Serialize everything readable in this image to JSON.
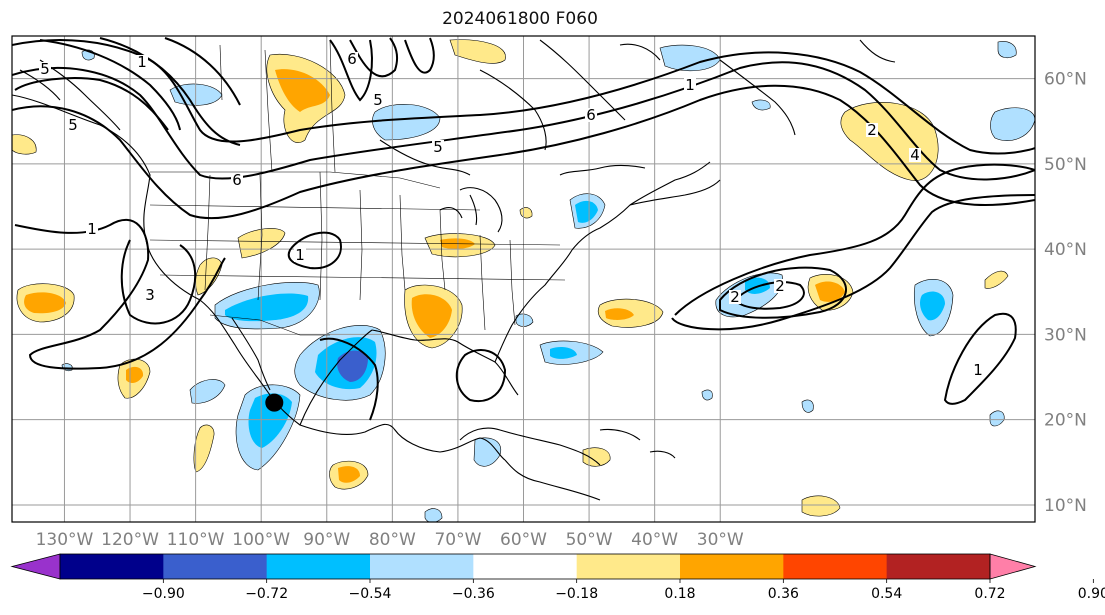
{
  "title": "2024061800 F060",
  "map": {
    "lon_range": [
      -138,
      18
    ],
    "lat_range": [
      8,
      65
    ],
    "grid_lons": [
      -130,
      -120,
      -110,
      -100,
      -90,
      -80,
      -70,
      -60,
      -50,
      -40,
      -30
    ],
    "grid_lats": [
      10,
      20,
      30,
      40,
      50,
      60
    ],
    "lon_labels": [
      "130°W",
      "120°W",
      "110°W",
      "100°W",
      "90°W",
      "80°W",
      "70°W",
      "60°W",
      "50°W",
      "40°W",
      "30°W"
    ],
    "lat_labels": [
      "10°N",
      "20°N",
      "30°N",
      "40°N",
      "50°N",
      "60°N"
    ],
    "marker": {
      "lon": -98,
      "lat": 22
    }
  },
  "colorbar": {
    "colors": [
      "#9932cc",
      "#00008b",
      "#3a5fcd",
      "#00bfff",
      "#b0e0ff",
      "#ffffff",
      "#ffe98a",
      "#ffa500",
      "#ff4500",
      "#b22222",
      "#ff7fa8"
    ],
    "tick_labels": [
      "−0.90",
      "−0.72",
      "−0.54",
      "−0.36",
      "−0.18",
      "0.18",
      "0.36",
      "0.54",
      "0.72",
      "0.90"
    ]
  },
  "contour_labels": [
    "5",
    "6",
    "5",
    "1",
    "6",
    "5",
    "6",
    "1",
    "3",
    "1",
    "1",
    "2",
    "2",
    "4",
    "1",
    "5",
    "2",
    "1"
  ]
}
